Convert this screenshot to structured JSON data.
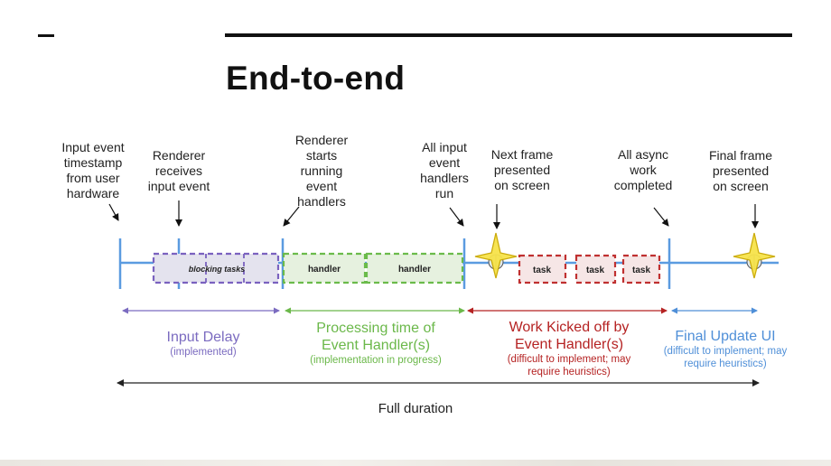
{
  "slide": {
    "title": "End-to-end"
  },
  "milestones": [
    {
      "id": "m1",
      "text": "Input event\ntimestamp\nfrom user\nhardware"
    },
    {
      "id": "m2",
      "text": "Renderer\nreceives\ninput event"
    },
    {
      "id": "m3",
      "text": "Renderer\nstarts\nrunning\nevent\nhandlers"
    },
    {
      "id": "m4",
      "text": "All input\nevent\nhandlers\nrun"
    },
    {
      "id": "m5",
      "text": "Next frame\npresented\non screen"
    },
    {
      "id": "m6",
      "text": "All async\nwork\ncompleted"
    },
    {
      "id": "m7",
      "text": "Final frame\npresented\non screen"
    }
  ],
  "boxes": {
    "blocking": "blocking tasks",
    "handler1": "handler",
    "handler2": "handler",
    "task1": "task",
    "task2": "task",
    "task3": "task"
  },
  "phases": {
    "input_delay": {
      "title": "Input Delay",
      "sub": "(implemented)",
      "color": "#7b6bc0"
    },
    "processing": {
      "title": "Processing time of\nEvent Handler(s)",
      "sub": "(implementation in progress)",
      "color": "#6bb84a"
    },
    "work_kicked": {
      "title": "Work Kicked off by\nEvent Handler(s)",
      "sub": "(difficult to implement; may\nrequire heuristics)",
      "color": "#b52222"
    },
    "final_update": {
      "title": "Final Update UI",
      "sub": "(difficult to implement; may\nrequire heuristics)",
      "color": "#4f8fd8"
    }
  },
  "full_duration": "Full duration",
  "colors": {
    "timeline": "#5b9be0",
    "blocking": "#7a62bf",
    "handler": "#6bbb4b",
    "task": "#c03030",
    "star": "#f7e34a"
  }
}
